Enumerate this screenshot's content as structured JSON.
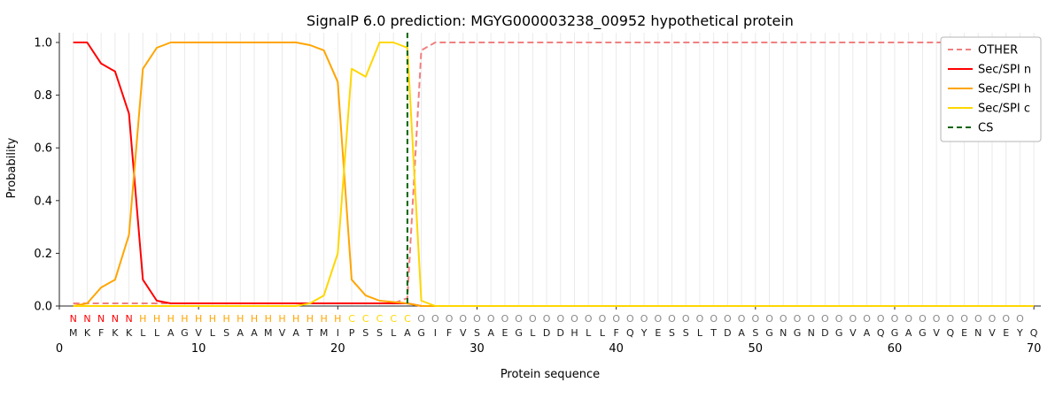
{
  "title": "SignalP 6.0 prediction: MGYG000003238_00952 hypothetical protein",
  "axes": {
    "ylabel": "Probability",
    "xlabel": "Protein sequence",
    "yticks": [
      0.0,
      0.2,
      0.4,
      0.6,
      0.8,
      1.0
    ],
    "xticks": [
      0,
      10,
      20,
      30,
      40,
      50,
      60,
      70
    ]
  },
  "colors": {
    "grid": "#eaeaea",
    "spine": "#262626",
    "sequence_text": "#1a1a1a",
    "legend_border": "#b5b5b5"
  },
  "region_colors": {
    "N": "#ff0000",
    "H": "#ffa500",
    "C": "#ffd700",
    "O": "#8a8a8a"
  },
  "chart_data": {
    "type": "line",
    "title": "SignalP 6.0 prediction: MGYG000003238_00952 hypothetical protein",
    "xlabel": "Protein sequence",
    "ylabel": "Probability",
    "x_start": 1,
    "x_end": 70,
    "xlim": [
      0,
      70.5
    ],
    "ylim": [
      0,
      1.05
    ],
    "grid": "vertical",
    "legend_position": "upper right",
    "sequence": "MKFKKLLAGVLSAAMVATMIPSSLAGIFVSAEGLDDHLLFQYESSLTDASGNGNDGVAQGAGVQENVEYQ",
    "region_labels": "NNNNNHHHHHHHHHHHHHHHCCCCCOOOOOOOOOOOOOOOOOOOOOOOOOOOOOOOOOOOOOOOOOOOO",
    "series": [
      {
        "name": "OTHER",
        "color": "#f08080",
        "dash": true,
        "values": [
          0.01,
          0.01,
          0.01,
          0.01,
          0.01,
          0.01,
          0.01,
          0.01,
          0.01,
          0.01,
          0.01,
          0.01,
          0.01,
          0.01,
          0.01,
          0.01,
          0.01,
          0.01,
          0.01,
          0.01,
          0.01,
          0.01,
          0.01,
          0.01,
          0.03,
          0.97,
          1.0,
          1.0,
          1.0,
          1.0,
          1.0,
          1.0,
          1.0,
          1.0,
          1.0,
          1.0,
          1.0,
          1.0,
          1.0,
          1.0,
          1.0,
          1.0,
          1.0,
          1.0,
          1.0,
          1.0,
          1.0,
          1.0,
          1.0,
          1.0,
          1.0,
          1.0,
          1.0,
          1.0,
          1.0,
          1.0,
          1.0,
          1.0,
          1.0,
          1.0,
          1.0,
          1.0,
          1.0,
          1.0,
          1.0,
          1.0,
          1.0,
          1.0,
          1.0,
          1.0
        ]
      },
      {
        "name": "Sec/SPI n",
        "color": "#ff0000",
        "dash": false,
        "values": [
          1.0,
          1.0,
          0.92,
          0.89,
          0.73,
          0.1,
          0.02,
          0.01,
          0.01,
          0.01,
          0.01,
          0.01,
          0.01,
          0.01,
          0.01,
          0.01,
          0.01,
          0.01,
          0.01,
          0.01,
          0.01,
          0.01,
          0.01,
          0.01,
          0.01,
          0.0,
          0.0,
          0.0,
          0.0,
          0.0,
          0.0,
          0.0,
          0.0,
          0.0,
          0.0,
          0.0,
          0.0,
          0.0,
          0.0,
          0.0,
          0.0,
          0.0,
          0.0,
          0.0,
          0.0,
          0.0,
          0.0,
          0.0,
          0.0,
          0.0,
          0.0,
          0.0,
          0.0,
          0.0,
          0.0,
          0.0,
          0.0,
          0.0,
          0.0,
          0.0,
          0.0,
          0.0,
          0.0,
          0.0,
          0.0,
          0.0,
          0.0,
          0.0,
          0.0,
          0.0
        ]
      },
      {
        "name": "Sec/SPI h",
        "color": "#ffa500",
        "dash": false,
        "values": [
          0.0,
          0.01,
          0.07,
          0.1,
          0.27,
          0.9,
          0.98,
          1.0,
          1.0,
          1.0,
          1.0,
          1.0,
          1.0,
          1.0,
          1.0,
          1.0,
          1.0,
          0.99,
          0.97,
          0.85,
          0.1,
          0.04,
          0.02,
          0.015,
          0.01,
          0.0,
          0.0,
          0.0,
          0.0,
          0.0,
          0.0,
          0.0,
          0.0,
          0.0,
          0.0,
          0.0,
          0.0,
          0.0,
          0.0,
          0.0,
          0.0,
          0.0,
          0.0,
          0.0,
          0.0,
          0.0,
          0.0,
          0.0,
          0.0,
          0.0,
          0.0,
          0.0,
          0.0,
          0.0,
          0.0,
          0.0,
          0.0,
          0.0,
          0.0,
          0.0,
          0.0,
          0.0,
          0.0,
          0.0,
          0.0,
          0.0,
          0.0,
          0.0,
          0.0,
          0.0
        ]
      },
      {
        "name": "Sec/SPI c",
        "color": "#ffd700",
        "dash": false,
        "values": [
          0.0,
          0.0,
          0.0,
          0.0,
          0.0,
          0.0,
          0.0,
          0.0,
          0.0,
          0.0,
          0.0,
          0.0,
          0.0,
          0.0,
          0.0,
          0.0,
          0.0,
          0.01,
          0.04,
          0.2,
          0.9,
          0.87,
          1.0,
          1.0,
          0.98,
          0.02,
          0.0,
          0.0,
          0.0,
          0.0,
          0.0,
          0.0,
          0.0,
          0.0,
          0.0,
          0.0,
          0.0,
          0.0,
          0.0,
          0.0,
          0.0,
          0.0,
          0.0,
          0.0,
          0.0,
          0.0,
          0.0,
          0.0,
          0.0,
          0.0,
          0.0,
          0.0,
          0.0,
          0.0,
          0.0,
          0.0,
          0.0,
          0.0,
          0.0,
          0.0,
          0.0,
          0.0,
          0.0,
          0.0,
          0.0,
          0.0,
          0.0,
          0.0,
          0.0,
          0.0
        ]
      }
    ],
    "cs": {
      "name": "CS",
      "color": "#006400",
      "position": 25
    }
  }
}
